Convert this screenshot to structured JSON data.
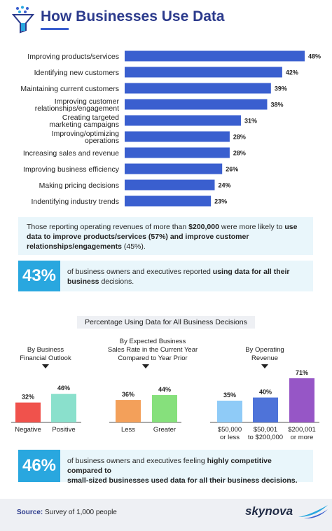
{
  "title": "How Businesses Use Data",
  "chart_data": [
    {
      "type": "bar",
      "orientation": "horizontal",
      "categories": [
        "Improving products/services",
        "Identifying new customers",
        "Maintaining current customers",
        "Improving customer relationships/engagement",
        "Creating targeted marketing campaigns",
        "Improving/optimizing operations",
        "Increasing sales and revenue",
        "Improving business efficiency",
        "Making pricing decisions",
        "Indentifying industry trends"
      ],
      "values": [
        48,
        42,
        39,
        38,
        31,
        28,
        28,
        26,
        24,
        23
      ],
      "value_labels": [
        "48%",
        "42%",
        "39%",
        "38%",
        "31%",
        "28%",
        "28%",
        "26%",
        "24%",
        "23%"
      ],
      "color": "#3a5fcf"
    },
    {
      "type": "bar",
      "title": "By Business Financial Outlook",
      "categories": [
        "Negative",
        "Positive"
      ],
      "values": [
        32,
        46
      ],
      "value_labels": [
        "32%",
        "46%"
      ],
      "colors": [
        "#f0524c",
        "#8ae0cc"
      ]
    },
    {
      "type": "bar",
      "title": "By Expected Business Sales Rate in the Current Year Compared to Year Prior",
      "categories": [
        "Less",
        "Greater"
      ],
      "values": [
        36,
        44
      ],
      "value_labels": [
        "36%",
        "44%"
      ],
      "colors": [
        "#f3a05a",
        "#86e07c"
      ]
    },
    {
      "type": "bar",
      "title": "By Operating Revenue",
      "categories": [
        "$50,000 or less",
        "$50,001 to $200,000",
        "$200,001 or more"
      ],
      "values": [
        35,
        40,
        71
      ],
      "value_labels": [
        "35%",
        "40%",
        "71%"
      ],
      "colors": [
        "#8fcbf7",
        "#4e73d9",
        "#9656c6"
      ]
    }
  ],
  "note": {
    "pre": "Those reporting operating revenues of more than ",
    "b1": "$200,000",
    "mid": " were more likely to ",
    "b2": "use data to improve products/services (57%) and improve customer relationships/engagements",
    "post": " (45%)."
  },
  "stat1": {
    "number": "43%",
    "pre": "of business owners and executives reported ",
    "bold": "using data for all their business",
    "post": " decisions."
  },
  "section_title": "Percentage Using Data for All Business Decisions",
  "group_titles": {
    "outlook": [
      "By Business",
      "Financial Outlook"
    ],
    "sales": [
      "By Expected Business",
      "Sales Rate in the Current Year",
      "Compared to Year Prior"
    ],
    "revenue": [
      "By Operating",
      "Revenue"
    ]
  },
  "stat2": {
    "number": "46%",
    "pre": "of business owners and executives feeling ",
    "bold1": "highly competitive compared to",
    "bold2": "small-sized businesses used data for all their business decisions."
  },
  "footer": {
    "source_label": "Source:",
    "source_text": " Survey of 1,000 people",
    "logo": "skynova"
  }
}
